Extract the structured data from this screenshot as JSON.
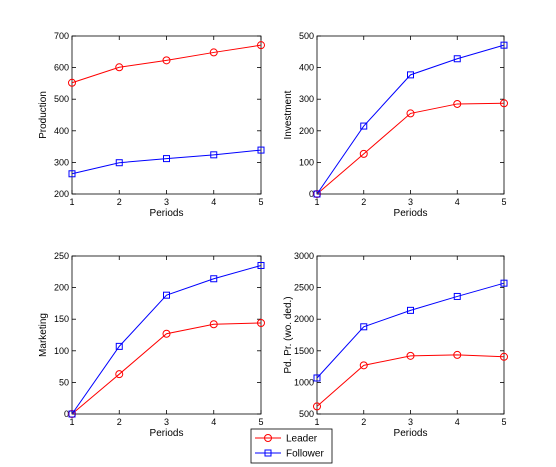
{
  "chart_data": [
    {
      "type": "line",
      "xlabel": "Periods",
      "ylabel": "Production",
      "x": [
        1,
        2,
        3,
        4,
        5
      ],
      "xticks": [
        1,
        2,
        3,
        4,
        5
      ],
      "xlim": [
        1,
        5
      ],
      "ylim": [
        200,
        700
      ],
      "yticks": [
        200,
        300,
        400,
        500,
        600,
        700
      ],
      "grid": false,
      "series": [
        {
          "name": "Leader",
          "values": [
            552,
            601,
            623,
            648,
            671
          ]
        },
        {
          "name": "Follower",
          "values": [
            264,
            299,
            312,
            324,
            339
          ]
        }
      ]
    },
    {
      "type": "line",
      "xlabel": "Periods",
      "ylabel": "Investment",
      "x": [
        1,
        2,
        3,
        4,
        5
      ],
      "xticks": [
        1,
        2,
        3,
        4,
        5
      ],
      "xlim": [
        1,
        5
      ],
      "ylim": [
        0,
        500
      ],
      "yticks": [
        0,
        100,
        200,
        300,
        400,
        500
      ],
      "grid": false,
      "series": [
        {
          "name": "Leader",
          "values": [
            0,
            127,
            255,
            285,
            287
          ]
        },
        {
          "name": "Follower",
          "values": [
            0,
            215,
            377,
            428,
            471
          ]
        }
      ]
    },
    {
      "type": "line",
      "xlabel": "Periods",
      "ylabel": "Marketing",
      "x": [
        1,
        2,
        3,
        4,
        5
      ],
      "xticks": [
        1,
        2,
        3,
        4,
        5
      ],
      "xlim": [
        1,
        5
      ],
      "ylim": [
        0,
        250
      ],
      "yticks": [
        0,
        50,
        100,
        150,
        200,
        250
      ],
      "grid": false,
      "series": [
        {
          "name": "Leader",
          "values": [
            0,
            63,
            127,
            142,
            144
          ]
        },
        {
          "name": "Follower",
          "values": [
            0,
            107,
            188,
            214,
            235
          ]
        }
      ]
    },
    {
      "type": "line",
      "xlabel": "Periods",
      "ylabel": "Pd. Pr. (wo. ded.)",
      "x": [
        1,
        2,
        3,
        4,
        5
      ],
      "xticks": [
        1,
        2,
        3,
        4,
        5
      ],
      "xlim": [
        1,
        5
      ],
      "ylim": [
        500,
        3000
      ],
      "yticks": [
        500,
        1000,
        1500,
        2000,
        2500,
        3000
      ],
      "grid": false,
      "series": [
        {
          "name": "Leader",
          "values": [
            620,
            1270,
            1420,
            1435,
            1405
          ]
        },
        {
          "name": "Follower",
          "values": [
            1070,
            1880,
            2140,
            2360,
            2570
          ]
        }
      ]
    }
  ],
  "legend": {
    "placement": "bottom-center",
    "entries": [
      {
        "name": "Leader",
        "color": "#ff0000",
        "marker": "circle"
      },
      {
        "name": "Follower",
        "color": "#0000ff",
        "marker": "square"
      }
    ]
  }
}
